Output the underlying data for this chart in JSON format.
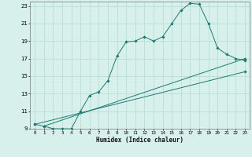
{
  "xlabel": "Humidex (Indice chaleur)",
  "bg_color": "#d8f0ec",
  "grid_color": "#b8ddd8",
  "line_color": "#1e7870",
  "xlim": [
    -0.5,
    23.5
  ],
  "ylim": [
    9,
    23.5
  ],
  "xticks": [
    0,
    1,
    2,
    3,
    4,
    5,
    6,
    7,
    8,
    9,
    10,
    11,
    12,
    13,
    14,
    15,
    16,
    17,
    18,
    19,
    20,
    21,
    22,
    23
  ],
  "yticks": [
    9,
    11,
    13,
    15,
    17,
    19,
    21,
    23
  ],
  "series1_x": [
    0,
    1,
    2,
    3,
    4,
    5,
    6,
    7,
    8,
    9,
    10,
    11,
    12,
    13,
    14,
    15,
    16,
    17,
    18,
    19,
    20,
    21,
    22,
    23
  ],
  "series1_y": [
    9.5,
    9.3,
    9.0,
    9.0,
    9.0,
    11.0,
    12.8,
    13.2,
    14.5,
    17.3,
    18.9,
    19.0,
    19.5,
    19.0,
    19.5,
    21.0,
    22.5,
    23.3,
    23.2,
    21.0,
    18.2,
    17.5,
    17.0,
    16.8
  ],
  "series2_x": [
    0,
    23
  ],
  "series2_y": [
    9.5,
    15.5
  ],
  "series3_x": [
    1,
    23
  ],
  "series3_y": [
    9.3,
    17.0
  ]
}
